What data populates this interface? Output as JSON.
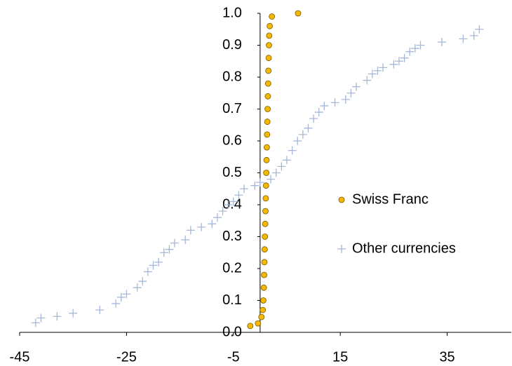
{
  "chart_data": {
    "type": "scatter",
    "xlim": [
      -45,
      47
    ],
    "xticks": [
      -45,
      -25,
      -5,
      15,
      35
    ],
    "ylim": [
      0,
      1
    ],
    "yticks": [
      {
        "value": 0,
        "label": "0.0"
      },
      0.1,
      0.2,
      0.3,
      0.4,
      0.5,
      0.6,
      0.7,
      0.8,
      0.9,
      {
        "value": 1,
        "label": "1.0"
      }
    ],
    "legend": "right",
    "series": [
      {
        "name": "Swiss Franc",
        "color": "#f5b800",
        "marker": "circle",
        "x": [
          -1.85,
          -0.4,
          0.25,
          0.5,
          0.6,
          0.7,
          0.75,
          0.8,
          0.85,
          0.9,
          0.95,
          1.0,
          1.05,
          1.1,
          1.15,
          1.2,
          1.25,
          1.3,
          1.35,
          1.4,
          1.45,
          1.5,
          1.55,
          1.6,
          1.65,
          1.7,
          1.8,
          2.2,
          7.1
        ],
        "values": [
          0.02,
          0.028,
          0.048,
          0.07,
          0.1,
          0.14,
          0.18,
          0.22,
          0.26,
          0.3,
          0.34,
          0.38,
          0.42,
          0.46,
          0.5,
          0.54,
          0.58,
          0.62,
          0.66,
          0.7,
          0.74,
          0.78,
          0.82,
          0.86,
          0.9,
          0.93,
          0.96,
          0.99,
          1.0
        ]
      },
      {
        "name": "Other currencies",
        "color": "#a6b8d8",
        "marker": "plus",
        "x": [
          -42,
          -41,
          -38,
          -35,
          -30,
          -27,
          -26,
          -25,
          -23,
          -22,
          -21,
          -20,
          -19,
          -18,
          -17,
          -16,
          -14,
          -13,
          -11,
          -9,
          -8,
          -7,
          -6,
          -5,
          -4,
          -3,
          -1,
          0,
          2,
          3,
          4,
          5,
          6,
          7,
          8,
          9,
          10,
          11,
          12,
          14,
          16,
          17,
          18,
          20,
          21,
          22,
          23,
          25,
          26,
          27,
          28,
          29,
          30,
          34,
          38,
          40,
          41
        ],
        "values": [
          0.03,
          0.045,
          0.05,
          0.06,
          0.07,
          0.09,
          0.11,
          0.12,
          0.14,
          0.16,
          0.19,
          0.21,
          0.22,
          0.25,
          0.26,
          0.28,
          0.29,
          0.32,
          0.33,
          0.34,
          0.36,
          0.38,
          0.4,
          0.41,
          0.43,
          0.45,
          0.46,
          0.47,
          0.48,
          0.5,
          0.52,
          0.54,
          0.57,
          0.6,
          0.62,
          0.64,
          0.67,
          0.69,
          0.71,
          0.72,
          0.73,
          0.75,
          0.77,
          0.79,
          0.81,
          0.82,
          0.83,
          0.84,
          0.85,
          0.86,
          0.88,
          0.89,
          0.9,
          0.91,
          0.92,
          0.93,
          0.95
        ]
      }
    ]
  }
}
